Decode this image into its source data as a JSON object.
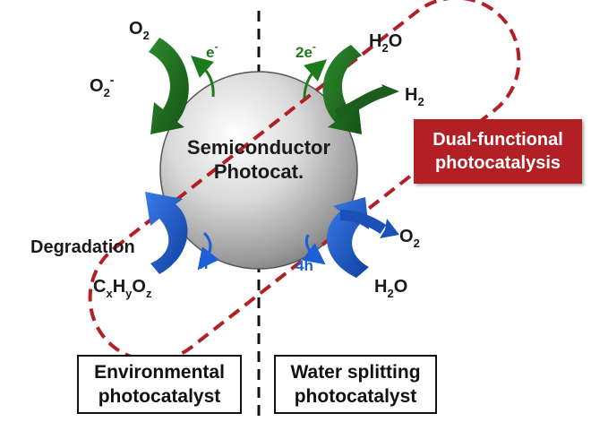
{
  "semiconductor": {
    "line1": "Semiconductor",
    "line2": "Photocat."
  },
  "left_top": {
    "o2": {
      "base": "O",
      "sub": "2"
    },
    "o2_minus": {
      "base": "O",
      "sub": "2",
      "sup": "-"
    },
    "electron": {
      "base": "e",
      "sup": "-"
    }
  },
  "right_top": {
    "h2o": {
      "base1": "H",
      "sub": "2",
      "base2": "O"
    },
    "h2": {
      "base": "H",
      "sub": "2"
    },
    "electrons": {
      "base": "2e",
      "sup": "-"
    }
  },
  "left_bottom": {
    "degradation": "Degradation",
    "hole": {
      "base": "h",
      "sup": "+"
    },
    "organic": {
      "c": "C",
      "x": "x",
      "h": "H",
      "y": "y",
      "o": "O",
      "z": "z"
    }
  },
  "right_bottom": {
    "holes": {
      "base": "4h",
      "sup": "+"
    },
    "o2": {
      "base": "O",
      "sub": "2"
    },
    "h2o": {
      "base1": "H",
      "sub": "2",
      "base2": "O"
    }
  },
  "dual_label": {
    "line1": "Dual-functional",
    "line2": "photocatalysis"
  },
  "env_box": {
    "line1": "Environmental",
    "line2": "photocatalyst"
  },
  "ws_box": {
    "line1": "Water splitting",
    "line2": "photocatalyst"
  },
  "colors": {
    "green": "#1d7a1d",
    "blue": "#1c5fd6",
    "red_dashed": "#b21f24",
    "red_box": "#b21f24"
  }
}
